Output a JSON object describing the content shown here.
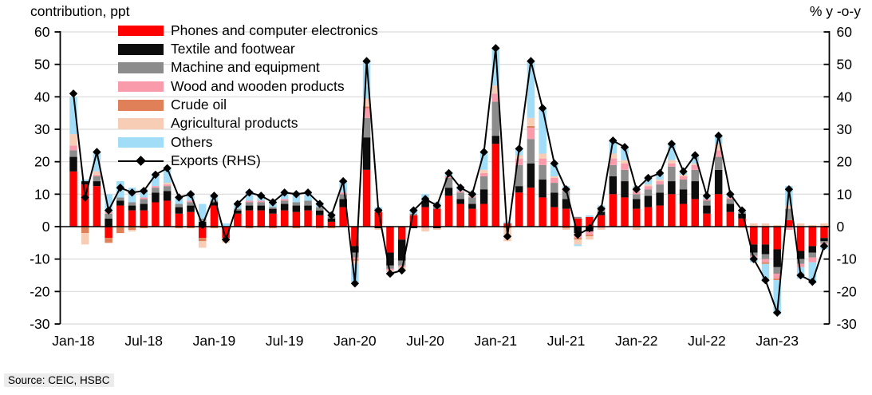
{
  "titles": {
    "left": "contribution, ppt",
    "right": "% y -o-y"
  },
  "source": "Source: CEIC, HSBC",
  "chart_data": {
    "type": "stacked-bar+line",
    "title": "",
    "ylabel_left": "contribution, ppt",
    "ylabel_right": "% y -o-y",
    "y_axis": {
      "min": -30,
      "max": 60,
      "step": 10
    },
    "grid": true,
    "legend_position": "top-left-inside",
    "x_tick_labels": [
      "Jan-18",
      "Jul-18",
      "Jan-19",
      "Jul-19",
      "Jan-20",
      "Jul-20",
      "Jan-21",
      "Jul-21",
      "Jan-22",
      "Jul-22",
      "Jan-23"
    ],
    "months": [
      "Jan-18",
      "Feb-18",
      "Mar-18",
      "Apr-18",
      "May-18",
      "Jun-18",
      "Jul-18",
      "Aug-18",
      "Sep-18",
      "Oct-18",
      "Nov-18",
      "Dec-18",
      "Jan-19",
      "Feb-19",
      "Mar-19",
      "Apr-19",
      "May-19",
      "Jun-19",
      "Jul-19",
      "Aug-19",
      "Sep-19",
      "Oct-19",
      "Nov-19",
      "Dec-19",
      "Jan-20",
      "Feb-20",
      "Mar-20",
      "Apr-20",
      "May-20",
      "Jun-20",
      "Jul-20",
      "Aug-20",
      "Sep-20",
      "Oct-20",
      "Nov-20",
      "Dec-20",
      "Jan-21",
      "Feb-21",
      "Mar-21",
      "Apr-21",
      "May-21",
      "Jun-21",
      "Jul-21",
      "Aug-21",
      "Sep-21",
      "Oct-21",
      "Nov-21",
      "Dec-21",
      "Jan-22",
      "Feb-22",
      "Mar-22",
      "Apr-22",
      "May-22",
      "Jun-22",
      "Jul-22",
      "Aug-22",
      "Sep-22",
      "Oct-22",
      "Nov-22",
      "Dec-22",
      "Jan-23",
      "Feb-23",
      "Mar-23",
      "Apr-23",
      "May-23"
    ],
    "series": [
      {
        "name": "Phones and computer electronics",
        "color": "#fe0000",
        "values": [
          17,
          13,
          12.5,
          -3.5,
          6.5,
          5,
          5,
          7.5,
          8,
          4,
          4.5,
          -3.5,
          6.5,
          -3.5,
          4,
          5,
          5,
          4,
          5,
          4.5,
          5,
          3.5,
          1.5,
          6,
          -6,
          17.5,
          4.5,
          -8,
          -4,
          3.5,
          6,
          5.5,
          9.5,
          7,
          5.5,
          7,
          25.5,
          1,
          10.5,
          12,
          9,
          6,
          5.5,
          2.5,
          3,
          3.5,
          10,
          9,
          5.5,
          6,
          6.5,
          10,
          7,
          8.5,
          4,
          10,
          4.5,
          2.5,
          -5.5,
          -5.5,
          -7,
          2,
          -7.5,
          -6,
          -3.5
        ]
      },
      {
        "name": "Textile and footwear",
        "color": "#0d0d0d",
        "values": [
          4.5,
          1,
          1.5,
          2.5,
          1.5,
          1.5,
          2,
          3,
          3,
          2,
          2,
          1.5,
          1,
          0,
          1,
          1.5,
          1.5,
          1.5,
          2,
          2,
          1.5,
          1.5,
          1,
          2.5,
          -2,
          10,
          -0.5,
          -4,
          -6.5,
          -0.5,
          2,
          -0.5,
          2.5,
          1.5,
          1.5,
          4.5,
          2.5,
          0,
          2,
          7.5,
          5.5,
          4.5,
          3,
          -2,
          -1.5,
          1,
          5.5,
          5,
          3,
          3.5,
          4,
          4,
          4.5,
          5.5,
          2.5,
          7.5,
          2.5,
          1.5,
          -2.5,
          -3,
          -5.5,
          0,
          -2.5,
          -2,
          -1
        ]
      },
      {
        "name": "Machine and equipment",
        "color": "#8c8c8c",
        "values": [
          2,
          0,
          1.5,
          1.5,
          1,
          1,
          1.5,
          1.5,
          1.5,
          1,
          1,
          1,
          0.5,
          0,
          0.5,
          1,
          1,
          0.5,
          1,
          1,
          1.5,
          1,
          0.5,
          1.5,
          -1.5,
          6,
          1,
          -1,
          -1.5,
          0.5,
          0,
          1,
          3,
          2,
          2,
          4,
          10.5,
          0,
          6.5,
          7.5,
          4.5,
          3,
          2.5,
          0.5,
          0,
          1.5,
          3.5,
          3.5,
          1.5,
          2,
          2.5,
          4.5,
          3,
          3.5,
          1.5,
          4,
          1.5,
          0.5,
          -1,
          -1.5,
          -2,
          3.5,
          -1.5,
          -1.5,
          -0.5
        ]
      },
      {
        "name": "Wood and wooden products",
        "color": "#f99baa",
        "values": [
          1.5,
          0,
          0.5,
          0.5,
          0,
          0,
          0.5,
          0.5,
          0.5,
          0,
          0.5,
          0,
          0,
          0,
          0,
          0.5,
          0.5,
          0,
          0.5,
          0,
          0,
          0,
          0,
          0.5,
          -0.5,
          3,
          0,
          -0.5,
          -0.5,
          0,
          -0.5,
          0,
          0.5,
          0.5,
          0.5,
          1,
          2.5,
          0,
          2,
          3.5,
          2,
          1.5,
          1,
          -1.5,
          -1,
          -0.5,
          2,
          2,
          1,
          1,
          1,
          1,
          1,
          1.5,
          0.5,
          2,
          0.5,
          0,
          -0.5,
          -1,
          -1.5,
          -1,
          -1,
          -1.5,
          -0.5
        ]
      },
      {
        "name": "Crude oil",
        "color": "#e08059",
        "values": [
          0,
          -2,
          0,
          -1.5,
          -2,
          -1,
          -0.5,
          0,
          0,
          -0.5,
          -0.5,
          -1,
          -0.5,
          -0.5,
          0,
          -0.5,
          0,
          -0.5,
          0,
          -0.5,
          0,
          -0.5,
          -0.5,
          0,
          -0.5,
          0.5,
          0,
          0,
          0,
          0,
          0,
          0,
          0,
          0,
          0,
          0,
          0,
          -0.5,
          0,
          0.5,
          0,
          0,
          -0.5,
          -0.5,
          -0.5,
          0,
          0,
          0,
          0,
          0,
          0,
          0,
          0,
          0,
          0,
          0,
          0,
          0,
          0,
          -0.5,
          -0.5,
          0,
          0,
          0,
          0
        ]
      },
      {
        "name": "Agricultural products",
        "color": "#f7cdb5",
        "values": [
          3.5,
          -3.5,
          1,
          0,
          0,
          -0.5,
          0,
          0,
          0.5,
          0,
          0,
          -2,
          0,
          -1,
          0,
          0,
          -0.5,
          0,
          0,
          0,
          0,
          0,
          0,
          0,
          -1,
          2.5,
          -0.5,
          -0.5,
          -1,
          0,
          -1,
          -0.5,
          0,
          -0.5,
          -0.5,
          1,
          2.5,
          -4,
          1,
          2.5,
          1.5,
          0.5,
          -0.5,
          -1.5,
          -1,
          -0.5,
          1.5,
          1,
          -1,
          0.5,
          0.5,
          1,
          0.5,
          0.5,
          0,
          2,
          0,
          -0.5,
          1,
          1,
          0.5,
          1,
          1,
          0.5,
          1
        ]
      },
      {
        "name": "Others",
        "color": "#a2ddf8",
        "values": [
          11.5,
          0.5,
          6,
          5.5,
          5,
          4.5,
          2.5,
          3.5,
          4.5,
          2.5,
          2.5,
          4.5,
          1.5,
          1,
          1.5,
          3,
          2,
          2,
          2,
          3,
          2.5,
          1.5,
          1,
          3.5,
          -5.5,
          11.5,
          0.5,
          -0.5,
          0,
          1.5,
          2,
          1,
          1,
          1.5,
          1,
          5.5,
          11.5,
          0.5,
          2,
          17.5,
          14,
          4,
          0.5,
          -0.5,
          0.5,
          0.5,
          4,
          4,
          1.5,
          2,
          2,
          5,
          1,
          2.5,
          1,
          2.5,
          1,
          0.5,
          -1.5,
          -5.5,
          -10.5,
          6,
          -3.5,
          -6.5,
          -1.5
        ]
      }
    ],
    "line": {
      "name": "Exports (RHS)",
      "color": "#000000",
      "values": [
        41,
        9,
        23,
        5,
        12,
        10.5,
        11,
        16,
        18,
        9,
        10,
        0.5,
        9.5,
        -4,
        7,
        10.5,
        9.5,
        7.5,
        10.5,
        10,
        10.5,
        7,
        3.5,
        14,
        -17.5,
        51,
        5,
        -14.5,
        -13.5,
        5,
        8.5,
        6.5,
        16.5,
        12,
        10,
        23,
        55,
        -3,
        24,
        51,
        36.5,
        19.5,
        11.5,
        -2.5,
        -0.5,
        5.5,
        26.5,
        24.5,
        11.5,
        15,
        16.5,
        25.5,
        17,
        22,
        9.5,
        28,
        10,
        5,
        -10,
        -16.5,
        -26.5,
        11.5,
        -15,
        -17,
        -6
      ]
    }
  }
}
